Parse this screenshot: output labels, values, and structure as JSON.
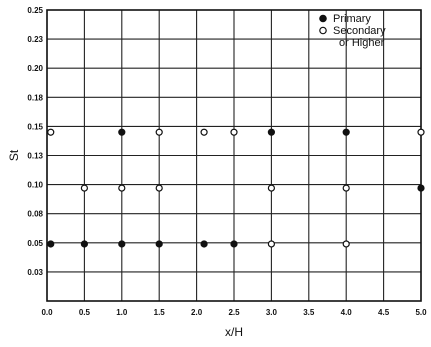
{
  "chart_data": {
    "type": "scatter",
    "xlabel": "x/H",
    "ylabel": "St",
    "xlim": [
      0.0,
      5.0
    ],
    "ylim": [
      0.0,
      0.25
    ],
    "grid": true,
    "legend_placement": "top-right",
    "x_ticks": [
      {
        "value": 0.0,
        "label": "0.0"
      },
      {
        "value": 0.5,
        "label": "0.5"
      },
      {
        "value": 1.0,
        "label": "1.0"
      },
      {
        "value": 1.5,
        "label": "1.5"
      },
      {
        "value": 2.0,
        "label": "2.0"
      },
      {
        "value": 2.5,
        "label": "2.5"
      },
      {
        "value": 3.0,
        "label": "3.0"
      },
      {
        "value": 3.5,
        "label": "3.5"
      },
      {
        "value": 4.0,
        "label": "4.0"
      },
      {
        "value": 4.5,
        "label": "4.5"
      },
      {
        "value": 5.0,
        "label": "5.0"
      }
    ],
    "y_ticks": [
      {
        "value": 0.025,
        "label": "0.03"
      },
      {
        "value": 0.05,
        "label": "0.05"
      },
      {
        "value": 0.075,
        "label": "0.08"
      },
      {
        "value": 0.1,
        "label": "0.10"
      },
      {
        "value": 0.125,
        "label": "0.13"
      },
      {
        "value": 0.15,
        "label": "0.15"
      },
      {
        "value": 0.175,
        "label": "0.18"
      },
      {
        "value": 0.2,
        "label": "0.20"
      },
      {
        "value": 0.225,
        "label": "0.23"
      },
      {
        "value": 0.25,
        "label": "0.25"
      }
    ],
    "series": [
      {
        "name": "Primary",
        "marker": "filled-circle",
        "points": [
          {
            "x": 0.05,
            "y": 0.049
          },
          {
            "x": 0.5,
            "y": 0.049
          },
          {
            "x": 1.0,
            "y": 0.049
          },
          {
            "x": 1.0,
            "y": 0.145
          },
          {
            "x": 1.5,
            "y": 0.049
          },
          {
            "x": 2.1,
            "y": 0.049
          },
          {
            "x": 2.5,
            "y": 0.049
          },
          {
            "x": 3.0,
            "y": 0.145
          },
          {
            "x": 4.0,
            "y": 0.145
          },
          {
            "x": 5.0,
            "y": 0.097
          }
        ]
      },
      {
        "name": "Secondary\nor Higher",
        "marker": "open-circle",
        "points": [
          {
            "x": 0.05,
            "y": 0.145
          },
          {
            "x": 0.5,
            "y": 0.097
          },
          {
            "x": 1.0,
            "y": 0.097
          },
          {
            "x": 1.5,
            "y": 0.097
          },
          {
            "x": 1.5,
            "y": 0.145
          },
          {
            "x": 2.1,
            "y": 0.145
          },
          {
            "x": 2.5,
            "y": 0.145
          },
          {
            "x": 3.0,
            "y": 0.097
          },
          {
            "x": 3.0,
            "y": 0.049
          },
          {
            "x": 4.0,
            "y": 0.097
          },
          {
            "x": 4.0,
            "y": 0.049
          },
          {
            "x": 5.0,
            "y": 0.145
          }
        ]
      }
    ]
  }
}
